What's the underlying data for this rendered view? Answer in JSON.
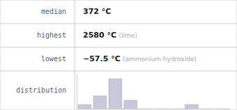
{
  "chart_data": {
    "type": "bar",
    "table": [
      {
        "label": "median",
        "value": "372 °C"
      },
      {
        "label": "highest",
        "value": "2580 °C",
        "note": "(lime)"
      },
      {
        "label": "lowest",
        "value": "−57.5 °C",
        "note": "(ammonium hydroxide)"
      },
      {
        "label": "distribution"
      }
    ],
    "categories": [
      null,
      null,
      null,
      null,
      null,
      null,
      null,
      null,
      null,
      null
    ],
    "values": [
      1,
      3,
      7,
      2,
      0,
      0,
      0,
      1,
      0,
      0
    ],
    "color": "#c8c8d8",
    "ylim": [
      0,
      8.05
    ],
    "grid": false,
    "tick_labels": false
  }
}
